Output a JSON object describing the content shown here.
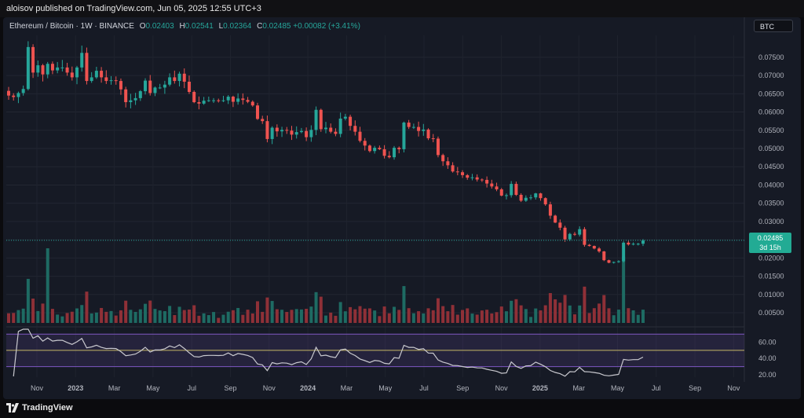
{
  "header": {
    "published": "aloisov published on TradingView.com, Jun 05, 2025 12:55 UTC+3"
  },
  "legend": {
    "title": "Ethereum / Bitcoin · 1W · BINANCE",
    "o_label": "O",
    "o_value": "0.02403",
    "h_label": "H",
    "h_value": "0.02541",
    "l_label": "L",
    "l_value": "0.02364",
    "c_label": "C",
    "c_value": "0.02485",
    "change": "+0.00082 (+3.41%)"
  },
  "badges": {
    "currency": "BTC",
    "last_price": "0.02485",
    "countdown": "3d 15h"
  },
  "footer": {
    "brand": "TradingView"
  },
  "colors": {
    "up": "#26a69a",
    "down": "#ef5350",
    "vol_up": "#1e6b63",
    "vol_down": "#8f3037",
    "rsi_line": "#c9c9cf",
    "rsi_band": "#7e57c2",
    "rsi_level": "#c6b866"
  },
  "chart_data": [
    {
      "type": "candlestick",
      "title": "Ethereum / Bitcoin · 1W · BINANCE",
      "y_ticks": [
        "0.07500",
        "0.07000",
        "0.06500",
        "0.06000",
        "0.05500",
        "0.05000",
        "0.04500",
        "0.04000",
        "0.03500",
        "0.03000",
        "0.02500",
        "0.02000",
        "0.01500",
        "0.01000",
        "0.00500"
      ],
      "ylim": [
        0.0035,
        0.081
      ],
      "x_ticks": [
        "Nov",
        "2023",
        "Mar",
        "May",
        "Jul",
        "Sep",
        "Nov",
        "2024",
        "Mar",
        "May",
        "Jul",
        "Sep",
        "Nov",
        "2025",
        "Mar",
        "May",
        "Jul",
        "Sep",
        "Nov"
      ],
      "last_price": 0.02485,
      "close_series": [
        0.0645,
        0.0641,
        0.0652,
        0.0663,
        0.0778,
        0.0708,
        0.0728,
        0.0703,
        0.0732,
        0.0714,
        0.0722,
        0.0722,
        0.0708,
        0.0695,
        0.0722,
        0.0762,
        0.0685,
        0.0695,
        0.0713,
        0.0695,
        0.0685,
        0.0687,
        0.0685,
        0.0662,
        0.0627,
        0.0632,
        0.0638,
        0.0657,
        0.0686,
        0.0652,
        0.0667,
        0.0667,
        0.0675,
        0.0695,
        0.0685,
        0.0705,
        0.0683,
        0.0655,
        0.0627,
        0.0623,
        0.0631,
        0.0632,
        0.0632,
        0.0631,
        0.0632,
        0.0642,
        0.0628,
        0.0637,
        0.0633,
        0.0628,
        0.0618,
        0.0581,
        0.0575,
        0.0526,
        0.0557,
        0.0547,
        0.0551,
        0.0549,
        0.0538,
        0.0545,
        0.0548,
        0.0531,
        0.0551,
        0.0606,
        0.0553,
        0.0557,
        0.0546,
        0.054,
        0.0582,
        0.0587,
        0.0562,
        0.0546,
        0.0521,
        0.0508,
        0.0493,
        0.0502,
        0.0498,
        0.048,
        0.0476,
        0.0502,
        0.0498,
        0.0571,
        0.0559,
        0.0559,
        0.0548,
        0.0552,
        0.0528,
        0.0527,
        0.0482,
        0.0465,
        0.0454,
        0.0437,
        0.0435,
        0.0427,
        0.042,
        0.0421,
        0.0415,
        0.0414,
        0.0404,
        0.0396,
        0.0388,
        0.0371,
        0.0372,
        0.0403,
        0.0373,
        0.0357,
        0.0365,
        0.0366,
        0.0377,
        0.0364,
        0.0347,
        0.0316,
        0.0297,
        0.0283,
        0.0251,
        0.0266,
        0.0264,
        0.0279,
        0.0236,
        0.0233,
        0.0226,
        0.0218,
        0.0194,
        0.0187,
        0.0189,
        0.0191,
        0.0242,
        0.0237,
        0.0239,
        0.0239,
        0.0248
      ],
      "rsi": {
        "levels": [
          70,
          50,
          30
        ],
        "y_ticks": [
          "60.00",
          "40.00",
          "20.00"
        ],
        "ylim": [
          17,
          77
        ]
      },
      "volume": {
        "relative": true
      }
    }
  ]
}
